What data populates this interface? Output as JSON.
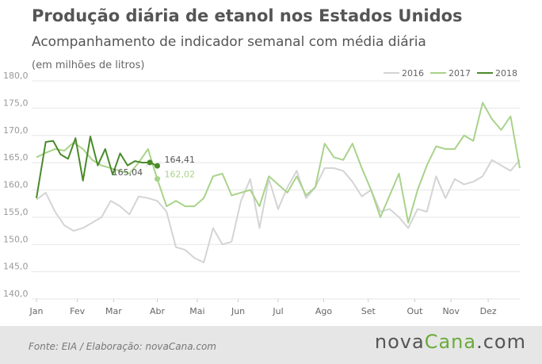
{
  "chart_data": {
    "type": "line",
    "title": "Produção diária de etanol nos Estados Unidos",
    "subtitle": "Acompanhamento de indicador semanal com média diária",
    "ylabel": "(em milhões de litros)",
    "ylim": [
      140,
      180
    ],
    "yticks": [
      "180,0",
      "175,0",
      "170,0",
      "165,0",
      "160,0",
      "155,0",
      "150,0",
      "145,0",
      "140,0"
    ],
    "xlim": [
      0,
      52
    ],
    "xticks": [
      {
        "label": "Jan",
        "pos": 0
      },
      {
        "label": "Fev",
        "pos": 4.4
      },
      {
        "label": "Mar",
        "pos": 8.3
      },
      {
        "label": "Abr",
        "pos": 13
      },
      {
        "label": "Mai",
        "pos": 17.3
      },
      {
        "label": "Jun",
        "pos": 21.7
      },
      {
        "label": "Jul",
        "pos": 26
      },
      {
        "label": "Ago",
        "pos": 30.9
      },
      {
        "label": "Set",
        "pos": 35.7
      },
      {
        "label": "Out",
        "pos": 40.7
      },
      {
        "label": "Nov",
        "pos": 44.6
      },
      {
        "label": "Dez",
        "pos": 48.6
      }
    ],
    "grid": true,
    "legend_position": "top-right",
    "series": [
      {
        "name": "2016",
        "color": "#d4d4d4",
        "width": 2,
        "x": [
          0,
          1,
          2,
          3,
          4,
          5,
          6,
          7,
          8,
          9,
          10,
          11,
          12,
          13,
          14,
          15,
          16,
          17,
          18,
          19,
          20,
          21,
          22,
          23,
          24,
          25,
          26,
          27,
          28,
          29,
          30,
          31,
          32,
          33,
          34,
          35,
          36,
          37,
          38,
          39,
          40,
          41,
          42,
          43,
          44,
          45,
          46,
          47,
          48,
          49,
          50,
          51,
          52
        ],
        "values": [
          158.2,
          159.5,
          156.0,
          153.5,
          152.5,
          153.0,
          154.0,
          155.0,
          158.0,
          157.0,
          155.5,
          158.8,
          158.5,
          158.0,
          156.0,
          149.5,
          149.0,
          147.5,
          146.7,
          153.0,
          150.0,
          150.5,
          158.0,
          162.0,
          153.0,
          162.0,
          156.5,
          160.5,
          163.5,
          158.5,
          160.5,
          164.0,
          164.0,
          163.5,
          161.5,
          158.8,
          160.0,
          156.0,
          156.5,
          155.0,
          153.0,
          156.5,
          156.0,
          162.5,
          158.5,
          162.0,
          161.0,
          161.5,
          162.5,
          165.5,
          164.5,
          163.5,
          165.5
        ]
      },
      {
        "name": "2017",
        "color": "#a8d38a",
        "width": 2,
        "x": [
          0,
          1,
          2,
          3,
          4,
          5,
          6,
          7,
          8,
          9,
          10,
          11,
          12,
          13,
          14,
          15,
          16,
          17,
          18,
          19,
          20,
          21,
          22,
          23,
          24,
          25,
          26,
          27,
          28,
          29,
          30,
          31,
          32,
          33,
          34,
          35,
          36,
          37,
          38,
          39,
          40,
          41,
          42,
          43,
          44,
          45,
          46,
          47,
          48,
          49,
          50,
          51,
          52
        ],
        "values": [
          166.0,
          166.8,
          167.5,
          167.2,
          168.7,
          167.5,
          165.5,
          164.5,
          164.0,
          163.5,
          163.0,
          165.0,
          167.5,
          162.0,
          157.0,
          158.0,
          157.0,
          157.0,
          158.5,
          162.5,
          163.0,
          159.0,
          159.5,
          160.0,
          157.0,
          162.5,
          161.0,
          159.5,
          162.5,
          159.0,
          160.5,
          168.5,
          166.0,
          165.5,
          168.5,
          164.0,
          160.0,
          155.0,
          159.0,
          163.0,
          154.0,
          160.0,
          164.5,
          168.0,
          167.5,
          167.5,
          170.0,
          169.0,
          176.0,
          173.0,
          171.0,
          173.5,
          164.0
        ]
      },
      {
        "name": "2018",
        "color": "#4a8a2a",
        "width": 2,
        "x": [
          0,
          1,
          1.8,
          2.6,
          3.4,
          4.2,
          5,
          5.8,
          6.6,
          7.4,
          8.2,
          9,
          9.8,
          10.6,
          11.4,
          12.2,
          13
        ],
        "values": [
          158.5,
          168.8,
          169.0,
          166.5,
          165.7,
          169.5,
          161.7,
          169.8,
          164.5,
          167.5,
          162.8,
          166.7,
          164.5,
          165.3,
          165.0,
          165.04,
          164.41
        ]
      }
    ],
    "annotations": [
      {
        "text": "164,41",
        "x": 13,
        "y": 164.41,
        "series": "2018"
      },
      {
        "text": "165,04",
        "x": 12.2,
        "y": 165.04,
        "series": "2018"
      },
      {
        "text": "162,02",
        "x": 13,
        "y": 162.02,
        "series": "2017"
      }
    ]
  },
  "source": "Fonte: EIA / Elaboração: novaCana.com",
  "logo": {
    "part1": "nova",
    "part2": "Cana",
    "part3": ".com"
  }
}
